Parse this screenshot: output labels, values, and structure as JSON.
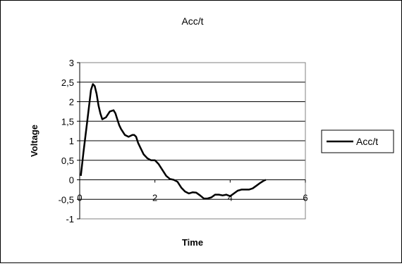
{
  "chart_data": {
    "type": "line",
    "title": "Acc/t",
    "xlabel": "Time",
    "ylabel": "Voltage",
    "xlim": [
      0,
      6
    ],
    "ylim": [
      -1,
      3
    ],
    "x_ticks": [
      0,
      2,
      4,
      6
    ],
    "x_tick_labels": [
      "0",
      "2",
      "4",
      "6"
    ],
    "y_ticks": [
      3,
      2.5,
      2,
      1.5,
      1,
      0.5,
      0,
      -0.5,
      -1
    ],
    "y_tick_labels": [
      "3",
      "2,5",
      "2",
      "1,5",
      "1",
      "0,5",
      "0",
      "-0,5",
      "-1"
    ],
    "grid": "horizontal",
    "legend_position": "right",
    "colors": {
      "series": "#000000"
    },
    "series": [
      {
        "name": "Acc/t",
        "x": [
          0.03,
          0.1,
          0.2,
          0.3,
          0.35,
          0.4,
          0.45,
          0.5,
          0.55,
          0.6,
          0.7,
          0.8,
          0.9,
          0.95,
          1.0,
          1.05,
          1.1,
          1.2,
          1.3,
          1.4,
          1.45,
          1.5,
          1.55,
          1.6,
          1.7,
          1.8,
          1.9,
          2.0,
          2.1,
          2.2,
          2.3,
          2.4,
          2.5,
          2.6,
          2.7,
          2.8,
          2.9,
          3.0,
          3.1,
          3.2,
          3.3,
          3.4,
          3.5,
          3.6,
          3.7,
          3.8,
          3.9,
          4.0,
          4.1,
          4.2,
          4.3,
          4.4,
          4.5,
          4.6,
          4.7,
          4.8,
          4.9,
          4.95
        ],
        "y": [
          0.1,
          0.7,
          1.5,
          2.3,
          2.45,
          2.4,
          2.2,
          1.9,
          1.7,
          1.55,
          1.6,
          1.75,
          1.78,
          1.7,
          1.55,
          1.4,
          1.3,
          1.15,
          1.1,
          1.15,
          1.15,
          1.1,
          0.95,
          0.85,
          0.65,
          0.55,
          0.5,
          0.5,
          0.4,
          0.25,
          0.1,
          0.02,
          0.0,
          -0.05,
          -0.2,
          -0.3,
          -0.35,
          -0.32,
          -0.33,
          -0.4,
          -0.48,
          -0.48,
          -0.45,
          -0.38,
          -0.38,
          -0.4,
          -0.38,
          -0.42,
          -0.35,
          -0.28,
          -0.25,
          -0.25,
          -0.25,
          -0.22,
          -0.15,
          -0.08,
          -0.02,
          0.0
        ]
      }
    ]
  }
}
